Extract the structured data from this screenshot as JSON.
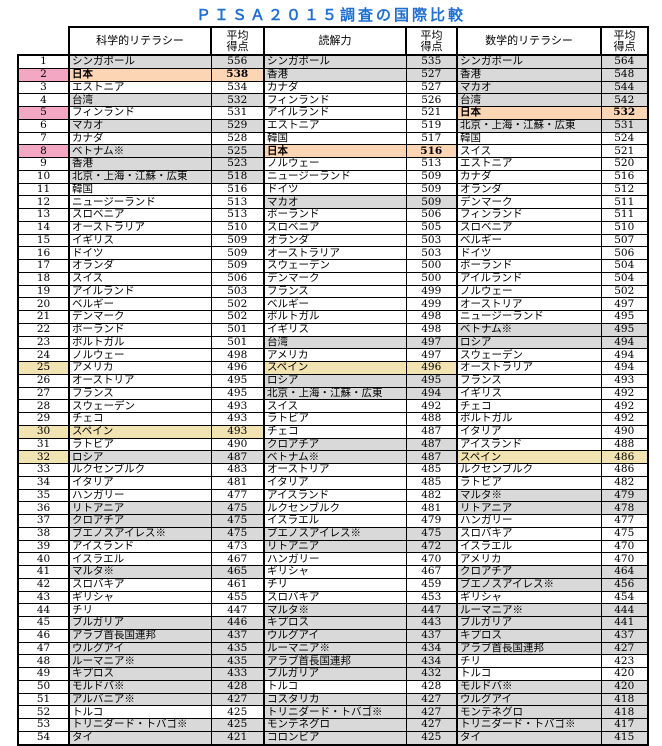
{
  "title": "ＰＩＳＡ２０１５調査の国際比較",
  "headers": {
    "science": "科学的リテラシー",
    "reading": "読解力",
    "math": "数学的リテラシー",
    "score": "平均\n得点"
  },
  "colors": {
    "title": "#1f6fd0",
    "non_oecd_gray": "#d9d9d9",
    "japan": "#fcd5b4",
    "spain": "#f2e3b3",
    "rank_pink": "#f4a7c3",
    "rank_yellow": "#f2e3b3"
  },
  "highlight": {
    "japan": "日本",
    "spain": "スペイン",
    "rank_pink": [
      2,
      5,
      8
    ],
    "rank_yellow": [
      25,
      30,
      32
    ],
    "gray": [
      "シンガポール",
      "台湾",
      "マカオ",
      "ベトナム※",
      "香港",
      "北京・上海・江蘇・広東",
      "ロシア",
      "リトアニア",
      "クロアチア",
      "ブエノスアイレス※",
      "マルタ※",
      "ブルガリア",
      "アラブ首長国連邦",
      "ウルグアイ",
      "ルーマニア※",
      "キプロス",
      "モルドバ※",
      "アルバニア※",
      "トリニダード・トバゴ※",
      "タイ",
      "コスタリカ",
      "モンテネグロ",
      "コロンビア"
    ]
  },
  "science": [
    [
      "シンガポール",
      556
    ],
    [
      "日本",
      538
    ],
    [
      "エストニア",
      534
    ],
    [
      "台湾",
      532
    ],
    [
      "フィンランド",
      531
    ],
    [
      "マカオ",
      529
    ],
    [
      "カナダ",
      528
    ],
    [
      "ベトナム※",
      525
    ],
    [
      "香港",
      523
    ],
    [
      "北京・上海・江蘇・広東",
      518
    ],
    [
      "韓国",
      516
    ],
    [
      "ニュージーランド",
      513
    ],
    [
      "スロベニア",
      513
    ],
    [
      "オーストラリア",
      510
    ],
    [
      "イギリス",
      509
    ],
    [
      "ドイツ",
      509
    ],
    [
      "オランダ",
      509
    ],
    [
      "スイス",
      506
    ],
    [
      "アイルランド",
      503
    ],
    [
      "ベルギー",
      502
    ],
    [
      "デンマーク",
      502
    ],
    [
      "ポーランド",
      501
    ],
    [
      "ポルトガル",
      501
    ],
    [
      "ノルウェー",
      498
    ],
    [
      "アメリカ",
      496
    ],
    [
      "オーストリア",
      495
    ],
    [
      "フランス",
      495
    ],
    [
      "スウェーデン",
      493
    ],
    [
      "チェコ",
      493
    ],
    [
      "スペイン",
      493
    ],
    [
      "ラトビア",
      490
    ],
    [
      "ロシア",
      487
    ],
    [
      "ルクセンブルク",
      483
    ],
    [
      "イタリア",
      481
    ],
    [
      "ハンガリー",
      477
    ],
    [
      "リトアニア",
      475
    ],
    [
      "クロアチア",
      475
    ],
    [
      "ブエノスアイレス※",
      475
    ],
    [
      "アイスランド",
      473
    ],
    [
      "イスラエル",
      467
    ],
    [
      "マルタ※",
      465
    ],
    [
      "スロバキア",
      461
    ],
    [
      "ギリシャ",
      455
    ],
    [
      "チリ",
      447
    ],
    [
      "ブルガリア",
      446
    ],
    [
      "アラブ首長国連邦",
      437
    ],
    [
      "ウルグアイ",
      435
    ],
    [
      "ルーマニア※",
      435
    ],
    [
      "キプロス",
      433
    ],
    [
      "モルドバ※",
      428
    ],
    [
      "アルバニア※",
      427
    ],
    [
      "トルコ",
      425
    ],
    [
      "トリニダード・トバゴ※",
      425
    ],
    [
      "タイ",
      421
    ]
  ],
  "reading": [
    [
      "シンガポール",
      535
    ],
    [
      "香港",
      527
    ],
    [
      "カナダ",
      527
    ],
    [
      "フィンランド",
      526
    ],
    [
      "アイルランド",
      521
    ],
    [
      "エストニア",
      519
    ],
    [
      "韓国",
      517
    ],
    [
      "日本",
      516
    ],
    [
      "ノルウェー",
      513
    ],
    [
      "ニュージーランド",
      509
    ],
    [
      "ドイツ",
      509
    ],
    [
      "マカオ",
      509
    ],
    [
      "ポーランド",
      506
    ],
    [
      "スロベニア",
      505
    ],
    [
      "オランダ",
      503
    ],
    [
      "オーストラリア",
      503
    ],
    [
      "スウェーデン",
      500
    ],
    [
      "デンマーク",
      500
    ],
    [
      "フランス",
      499
    ],
    [
      "ベルギー",
      499
    ],
    [
      "ポルトガル",
      498
    ],
    [
      "イギリス",
      498
    ],
    [
      "台湾",
      497
    ],
    [
      "アメリカ",
      497
    ],
    [
      "スペイン",
      496
    ],
    [
      "ロシア",
      495
    ],
    [
      "北京・上海・江蘇・広東",
      494
    ],
    [
      "スイス",
      492
    ],
    [
      "ラトビア",
      488
    ],
    [
      "チェコ",
      487
    ],
    [
      "クロアチア",
      487
    ],
    [
      "ベトナム※",
      487
    ],
    [
      "オーストリア",
      485
    ],
    [
      "イタリア",
      485
    ],
    [
      "アイスランド",
      482
    ],
    [
      "ルクセンブルク",
      481
    ],
    [
      "イスラエル",
      479
    ],
    [
      "ブエノスアイレス※",
      475
    ],
    [
      "リトアニア",
      472
    ],
    [
      "ハンガリー",
      470
    ],
    [
      "ギリシャ",
      467
    ],
    [
      "チリ",
      459
    ],
    [
      "スロバキア",
      453
    ],
    [
      "マルタ※",
      447
    ],
    [
      "キプロス",
      443
    ],
    [
      "ウルグアイ",
      437
    ],
    [
      "ルーマニア※",
      434
    ],
    [
      "アラブ首長国連邦",
      434
    ],
    [
      "ブルガリア",
      432
    ],
    [
      "トルコ",
      428
    ],
    [
      "コスタリカ",
      427
    ],
    [
      "トリニダード・トバゴ※",
      427
    ],
    [
      "モンテネグロ",
      427
    ],
    [
      "コロンビア",
      425
    ]
  ],
  "math": [
    [
      "シンガポール",
      564
    ],
    [
      "香港",
      548
    ],
    [
      "マカオ",
      544
    ],
    [
      "台湾",
      542
    ],
    [
      "日本",
      532
    ],
    [
      "北京・上海・江蘇・広東",
      531
    ],
    [
      "韓国",
      524
    ],
    [
      "スイス",
      521
    ],
    [
      "エストニア",
      520
    ],
    [
      "カナダ",
      516
    ],
    [
      "オランダ",
      512
    ],
    [
      "デンマーク",
      511
    ],
    [
      "フィンランド",
      511
    ],
    [
      "スロベニア",
      510
    ],
    [
      "ベルギー",
      507
    ],
    [
      "ドイツ",
      506
    ],
    [
      "ポーランド",
      504
    ],
    [
      "アイルランド",
      504
    ],
    [
      "ノルウェー",
      502
    ],
    [
      "オーストリア",
      497
    ],
    [
      "ニュージーランド",
      495
    ],
    [
      "ベトナム※",
      495
    ],
    [
      "ロシア",
      494
    ],
    [
      "スウェーデン",
      494
    ],
    [
      "オーストラリア",
      494
    ],
    [
      "フランス",
      493
    ],
    [
      "イギリス",
      492
    ],
    [
      "チェコ",
      492
    ],
    [
      "ポルトガル",
      492
    ],
    [
      "イタリア",
      490
    ],
    [
      "アイスランド",
      488
    ],
    [
      "スペイン",
      486
    ],
    [
      "ルクセンブルク",
      486
    ],
    [
      "ラトビア",
      482
    ],
    [
      "マルタ※",
      479
    ],
    [
      "リトアニア",
      478
    ],
    [
      "ハンガリー",
      477
    ],
    [
      "スロバキア",
      475
    ],
    [
      "イスラエル",
      470
    ],
    [
      "アメリカ",
      470
    ],
    [
      "クロアチア",
      464
    ],
    [
      "ブエノスアイレス※",
      456
    ],
    [
      "ギリシャ",
      454
    ],
    [
      "ルーマニア※",
      444
    ],
    [
      "ブルガリア",
      441
    ],
    [
      "キプロス",
      437
    ],
    [
      "アラブ首長国連邦",
      427
    ],
    [
      "チリ",
      423
    ],
    [
      "トルコ",
      420
    ],
    [
      "モルドバ※",
      420
    ],
    [
      "ウルグアイ",
      418
    ],
    [
      "モンテネグロ",
      418
    ],
    [
      "トリニダード・トバゴ※",
      417
    ],
    [
      "タイ",
      415
    ]
  ]
}
